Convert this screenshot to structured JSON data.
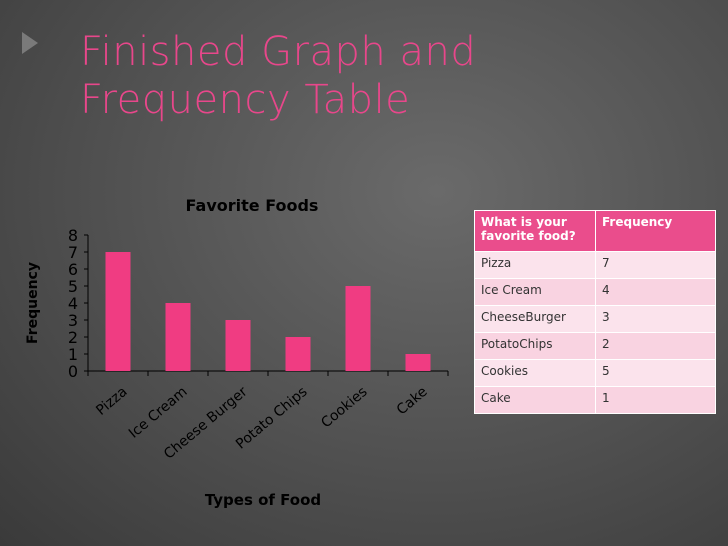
{
  "slide": {
    "title_line1": "Finished Graph and",
    "title_line2": "Frequency Table"
  },
  "colors": {
    "accent": "#e8478b",
    "bar": "#f03c82",
    "table_header": "#ea4d8c",
    "table_row": "#f9d3e1"
  },
  "chart_data": {
    "type": "bar",
    "title": "Favorite Foods",
    "xlabel": "Types of Food",
    "ylabel": "Frequency",
    "categories": [
      "Pizza",
      "Ice Cream",
      "Cheese Burger",
      "Potato Chips",
      "Cookies",
      "Cake"
    ],
    "values": [
      7,
      4,
      3,
      2,
      5,
      1
    ],
    "ylim": [
      0,
      8
    ],
    "yticks": [
      0,
      1,
      2,
      3,
      4,
      5,
      6,
      7,
      8
    ],
    "grid": false,
    "legend": "none"
  },
  "table": {
    "headers": [
      "What is your favorite food?",
      "Frequency"
    ],
    "rows": [
      [
        "Pizza",
        "7"
      ],
      [
        "Ice Cream",
        "4"
      ],
      [
        "CheeseBurger",
        "3"
      ],
      [
        "PotatoChips",
        "2"
      ],
      [
        "Cookies",
        "5"
      ],
      [
        "Cake",
        "1"
      ]
    ]
  }
}
